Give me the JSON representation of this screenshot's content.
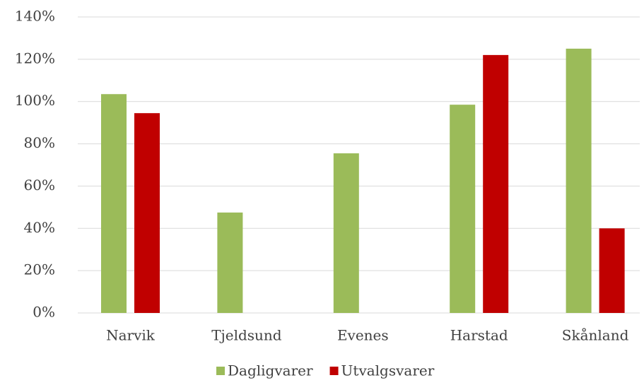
{
  "chart_data": {
    "type": "bar",
    "categories": [
      "Narvik",
      "Tjeldsund",
      "Evenes",
      "Harstad",
      "Skånland"
    ],
    "series": [
      {
        "name": "Dagligvarer",
        "color": "#9bbb59",
        "values": [
          103.5,
          47.5,
          75.5,
          98.5,
          125
        ]
      },
      {
        "name": "Utvalgsvarer",
        "color": "#c00000",
        "values": [
          94.5,
          null,
          null,
          122,
          40
        ]
      }
    ],
    "ylim": [
      0,
      140
    ],
    "yticks": [
      {
        "value": 0,
        "label": "0%"
      },
      {
        "value": 20,
        "label": "20%"
      },
      {
        "value": 40,
        "label": "40%"
      },
      {
        "value": 60,
        "label": "60%"
      },
      {
        "value": 80,
        "label": "80%"
      },
      {
        "value": 100,
        "label": "100%"
      },
      {
        "value": 120,
        "label": "120%"
      },
      {
        "value": 140,
        "label": "140%"
      }
    ],
    "grid": true,
    "legend": "bottom"
  }
}
